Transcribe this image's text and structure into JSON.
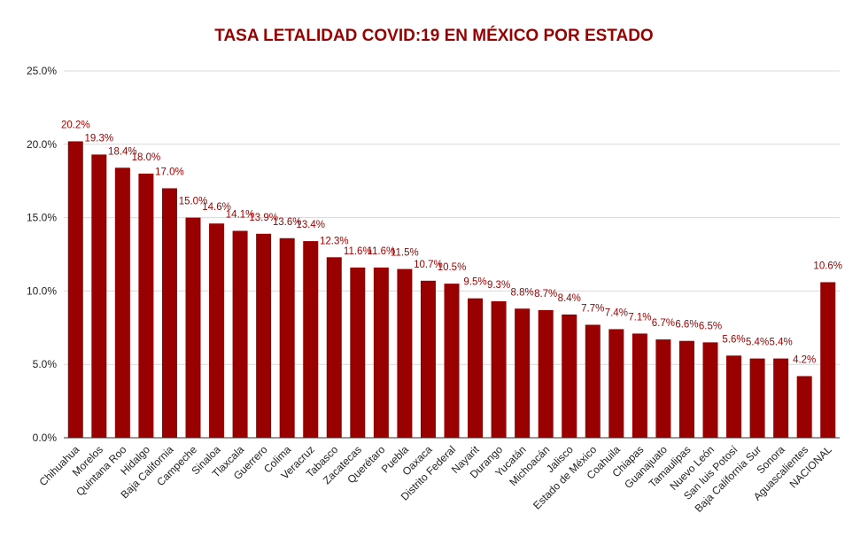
{
  "chart_data": {
    "type": "bar",
    "title": "TASA LETALIDAD COVID:19 EN MÉXICO POR ESTADO",
    "xlabel": "",
    "ylabel": "",
    "ylim": [
      0,
      25
    ],
    "yticks": [
      "0.0%",
      "5.0%",
      "10.0%",
      "15.0%",
      "20.0%",
      "25.0%"
    ],
    "ytick_values": [
      0,
      5,
      10,
      15,
      20,
      25
    ],
    "grid": true,
    "legend": "none",
    "bar_color": "#990000",
    "label_color": "#990000",
    "title_color": "#990000",
    "categories": [
      "Chihuahua",
      "Morelos",
      "Quintana Roo",
      "Hidalgo",
      "Baja California",
      "Campeche",
      "Sinaloa",
      "Tlaxcala",
      "Guerrero",
      "Colima",
      "Veracruz",
      "Tabasco",
      "Zacatecas",
      "Querétaro",
      "Puebla",
      "Oaxaca",
      "Distrito Federal",
      "Nayarit",
      "Durango",
      "Yucatán",
      "Michoacán",
      "Jalisco",
      "Estado de México",
      "Coahuila",
      "Chiapas",
      "Guanajuato",
      "Tamaulipas",
      "Nuevo León",
      "San luis Potosí",
      "Baja California Sur",
      "Sonora",
      "Aguascalientes",
      "NACIONAL"
    ],
    "values": [
      20.2,
      19.3,
      18.4,
      18.0,
      17.0,
      15.0,
      14.6,
      14.1,
      13.9,
      13.6,
      13.4,
      12.3,
      11.6,
      11.6,
      11.5,
      10.7,
      10.5,
      9.5,
      9.3,
      8.8,
      8.7,
      8.4,
      7.7,
      7.4,
      7.1,
      6.7,
      6.6,
      6.5,
      5.6,
      5.4,
      5.4,
      4.2,
      10.6
    ],
    "data_labels": [
      "20.2%",
      "19.3%",
      "18.4%",
      "18.0%",
      "17.0%",
      "15.0%",
      "14.6%",
      "14.1%",
      "13.9%",
      "13.6%",
      "13.4%",
      "12.3%",
      "11.6%",
      "11.6%",
      "11.5%",
      "10.7%",
      "10.5%",
      "9.5%",
      "9.3%",
      "8.8%",
      "8.7%",
      "8.4%",
      "7.7%",
      "7.4%",
      "7.1%",
      "6.7%",
      "6.6%",
      "6.5%",
      "5.6%",
      "5.4%",
      "5.4%",
      "4.2%",
      "10.6%"
    ]
  }
}
